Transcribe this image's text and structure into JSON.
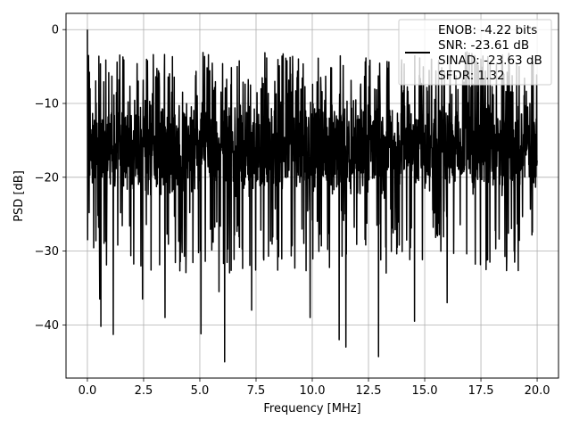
{
  "chart_data": {
    "type": "line",
    "xlabel": "Frequency [MHz]",
    "ylabel": "PSD [dB]",
    "xlim": [
      -0.95,
      20.95
    ],
    "ylim": [
      -47.2,
      2.2
    ],
    "xticks": [
      0.0,
      2.5,
      5.0,
      7.5,
      10.0,
      12.5,
      15.0,
      17.5,
      20.0
    ],
    "xtick_labels": [
      "0.0",
      "2.5",
      "5.0",
      "7.5",
      "10.0",
      "12.5",
      "15.0",
      "17.5",
      "20.0"
    ],
    "yticks": [
      0,
      -10,
      -20,
      -30,
      -40
    ],
    "ytick_labels": [
      "0",
      "−10",
      "−20",
      "−30",
      "−40"
    ],
    "grid": true,
    "legend_position": "top-right",
    "series": [
      {
        "color": "#000000",
        "legend_lines": [
          "ENOB: -4.22 bits",
          "SNR: -23.61 dB",
          "SINAD: -23.63 dB",
          "SFDR: 1.32"
        ],
        "x_range": [
          0,
          20
        ],
        "num_points": 2000,
        "baseline_db": -16,
        "peaks": [
          [
            0.0,
            0.0
          ],
          [
            0.05,
            -3.5
          ],
          [
            0.12,
            -8.0
          ],
          [
            14.55,
            -3.5
          ],
          [
            15.3,
            -4.0
          ],
          [
            17.5,
            -4.0
          ],
          [
            19.2,
            -5.0
          ]
        ],
        "dips": [
          [
            0.55,
            -36.5
          ],
          [
            0.6,
            -40.2
          ],
          [
            1.15,
            -41.3
          ],
          [
            2.45,
            -36.5
          ],
          [
            3.45,
            -39.0
          ],
          [
            5.05,
            -41.2
          ],
          [
            5.85,
            -35.5
          ],
          [
            6.1,
            -45.0
          ],
          [
            7.3,
            -38.0
          ],
          [
            9.9,
            -39.0
          ],
          [
            11.2,
            -42.0
          ],
          [
            11.5,
            -43.0
          ],
          [
            12.95,
            -44.3
          ],
          [
            14.55,
            -39.5
          ],
          [
            16.0,
            -37.0
          ],
          [
            17.9,
            -31.5
          ],
          [
            19.0,
            -31.5
          ]
        ]
      }
    ]
  }
}
